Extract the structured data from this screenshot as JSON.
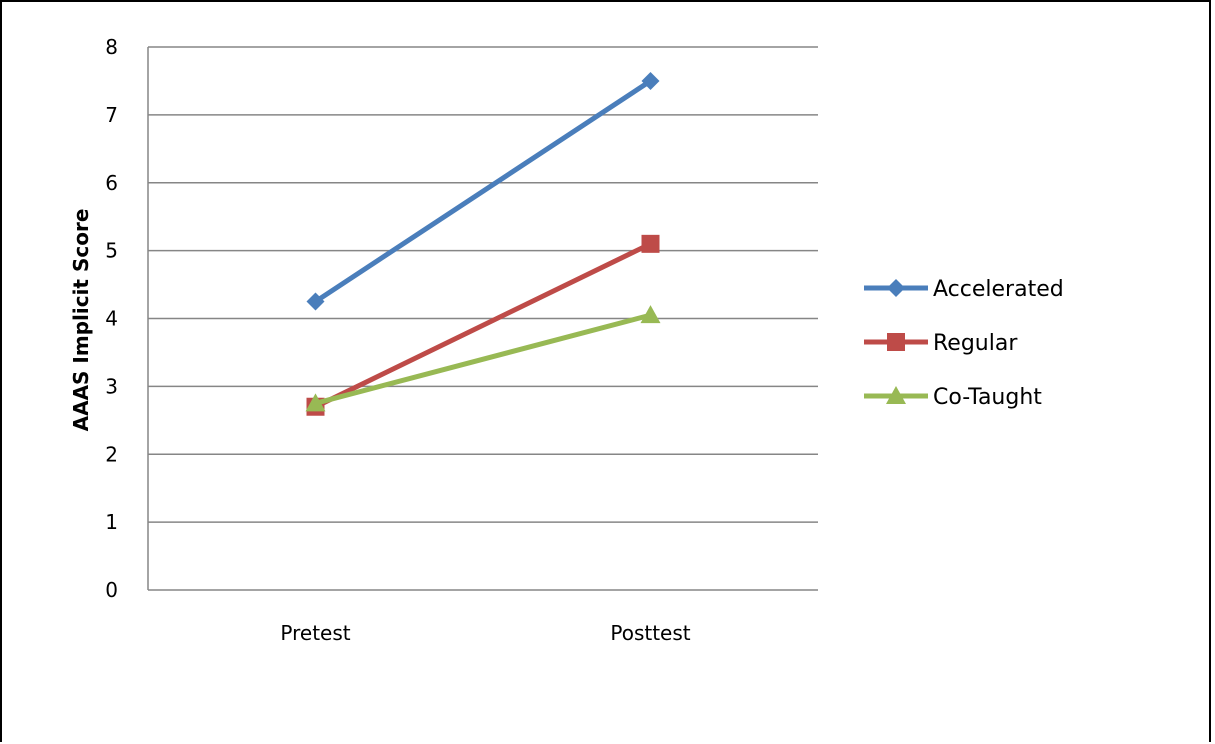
{
  "chart_data": {
    "type": "line",
    "title": "",
    "xlabel": "",
    "ylabel": "AAAS Implicit Score",
    "categories": [
      "Pretest",
      "Posttest"
    ],
    "ylim": [
      0,
      8
    ],
    "yticks": [
      "0",
      "1",
      "2",
      "3",
      "4",
      "5",
      "6",
      "7",
      "8"
    ],
    "grid": true,
    "legend_position": "right",
    "series": [
      {
        "name": "Accelerated",
        "values": [
          4.25,
          7.5
        ],
        "color": "#4a7ebb",
        "marker": "diamond"
      },
      {
        "name": "Regular",
        "values": [
          2.7,
          5.1
        ],
        "color": "#be4b48",
        "marker": "square"
      },
      {
        "name": "Co-Taught",
        "values": [
          2.75,
          4.05
        ],
        "color": "#98b954",
        "marker": "triangle"
      }
    ]
  }
}
